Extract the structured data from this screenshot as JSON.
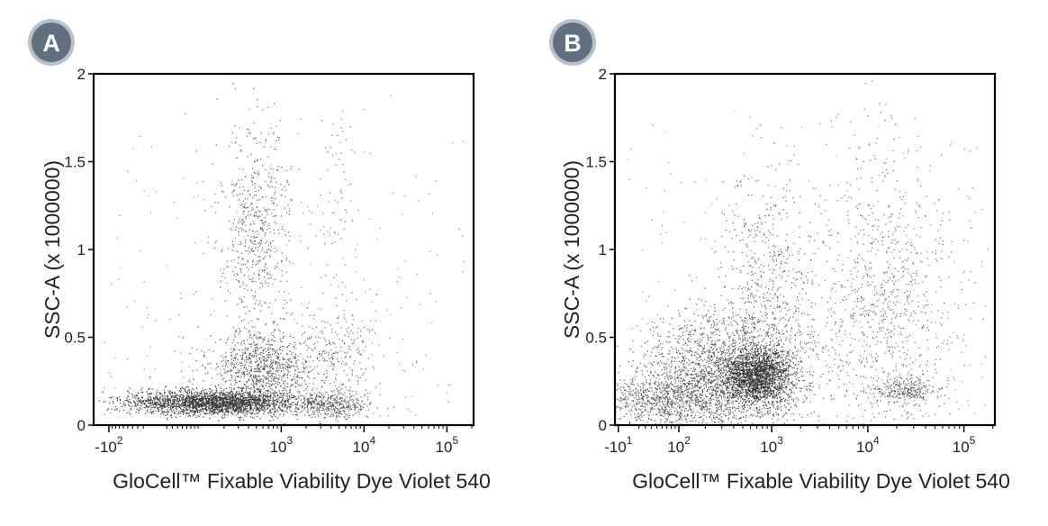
{
  "chart_data": [
    {
      "type": "scatter",
      "panel_label": "A",
      "xlabel": "GloCell™ Fixable Viability Dye Violet 540",
      "ylabel": "SSC-A (x 1000000)",
      "x_scale": "biexponential",
      "ylim": [
        0,
        2
      ],
      "y_ticks": [
        "0",
        "0.5",
        "1",
        "1.5",
        "2"
      ],
      "x_ticks": [
        {
          "base": "-10",
          "exp": "2",
          "value": -100
        },
        {
          "base": "10",
          "exp": "3",
          "value": 1000
        },
        {
          "base": "10",
          "exp": "4",
          "value": 10000
        },
        {
          "base": "10",
          "exp": "5",
          "value": 100000
        }
      ],
      "populations": [
        {
          "x_center": 150,
          "y_center": 0.13,
          "x_spread": 0.55,
          "y_spread": 0.035,
          "count": 2400,
          "density": "very high"
        },
        {
          "x_center": 600,
          "y_center": 0.33,
          "x_spread": 0.35,
          "y_spread": 0.1,
          "count": 900,
          "density": "high"
        },
        {
          "x_center": 500,
          "y_center": 1.12,
          "x_spread": 0.22,
          "y_spread": 0.3,
          "count": 550,
          "density": "medium"
        },
        {
          "x_center": 4000,
          "y_center": 0.12,
          "x_spread": 0.25,
          "y_spread": 0.04,
          "count": 420,
          "density": "medium"
        },
        {
          "x_center": 5000,
          "y_center": 0.42,
          "x_spread": 0.25,
          "y_spread": 0.12,
          "count": 220,
          "density": "low"
        },
        {
          "x_center": 4500,
          "y_center": 1.3,
          "x_spread": 0.12,
          "y_spread": 0.3,
          "count": 70,
          "density": "low"
        }
      ]
    },
    {
      "type": "scatter",
      "panel_label": "B",
      "xlabel": "GloCell™ Fixable Viability Dye Violet 540",
      "ylabel": "SSC-A (x 1000000)",
      "x_scale": "biexponential",
      "ylim": [
        0,
        2
      ],
      "y_ticks": [
        "0",
        "0.5",
        "1",
        "1.5",
        "2"
      ],
      "x_ticks": [
        {
          "base": "-10",
          "exp": "1",
          "value": -10
        },
        {
          "base": "10",
          "exp": "2",
          "value": 100
        },
        {
          "base": "10",
          "exp": "3",
          "value": 1000
        },
        {
          "base": "10",
          "exp": "4",
          "value": 10000
        },
        {
          "base": "10",
          "exp": "5",
          "value": 100000
        }
      ],
      "populations": [
        {
          "x_center": 700,
          "y_center": 0.28,
          "x_spread": 0.22,
          "y_spread": 0.08,
          "count": 1700,
          "density": "very high"
        },
        {
          "x_center": 350,
          "y_center": 0.3,
          "x_spread": 0.55,
          "y_spread": 0.17,
          "count": 2100,
          "density": "high"
        },
        {
          "x_center": 900,
          "y_center": 0.8,
          "x_spread": 0.3,
          "y_spread": 0.3,
          "count": 500,
          "density": "medium"
        },
        {
          "x_center": 15000,
          "y_center": 0.7,
          "x_spread": 0.45,
          "y_spread": 0.45,
          "count": 900,
          "density": "low"
        },
        {
          "x_center": 25000,
          "y_center": 0.2,
          "x_spread": 0.2,
          "y_spread": 0.04,
          "count": 280,
          "density": "medium"
        },
        {
          "x_center": 60,
          "y_center": 0.15,
          "x_spread": 0.45,
          "y_spread": 0.07,
          "count": 800,
          "density": "medium"
        }
      ]
    }
  ],
  "badge": {
    "fill": "#5f7080",
    "ring": "#b9c2ca"
  },
  "colors": {
    "points": "#1a1a1a",
    "frame": "#000000",
    "text": "#222222"
  }
}
